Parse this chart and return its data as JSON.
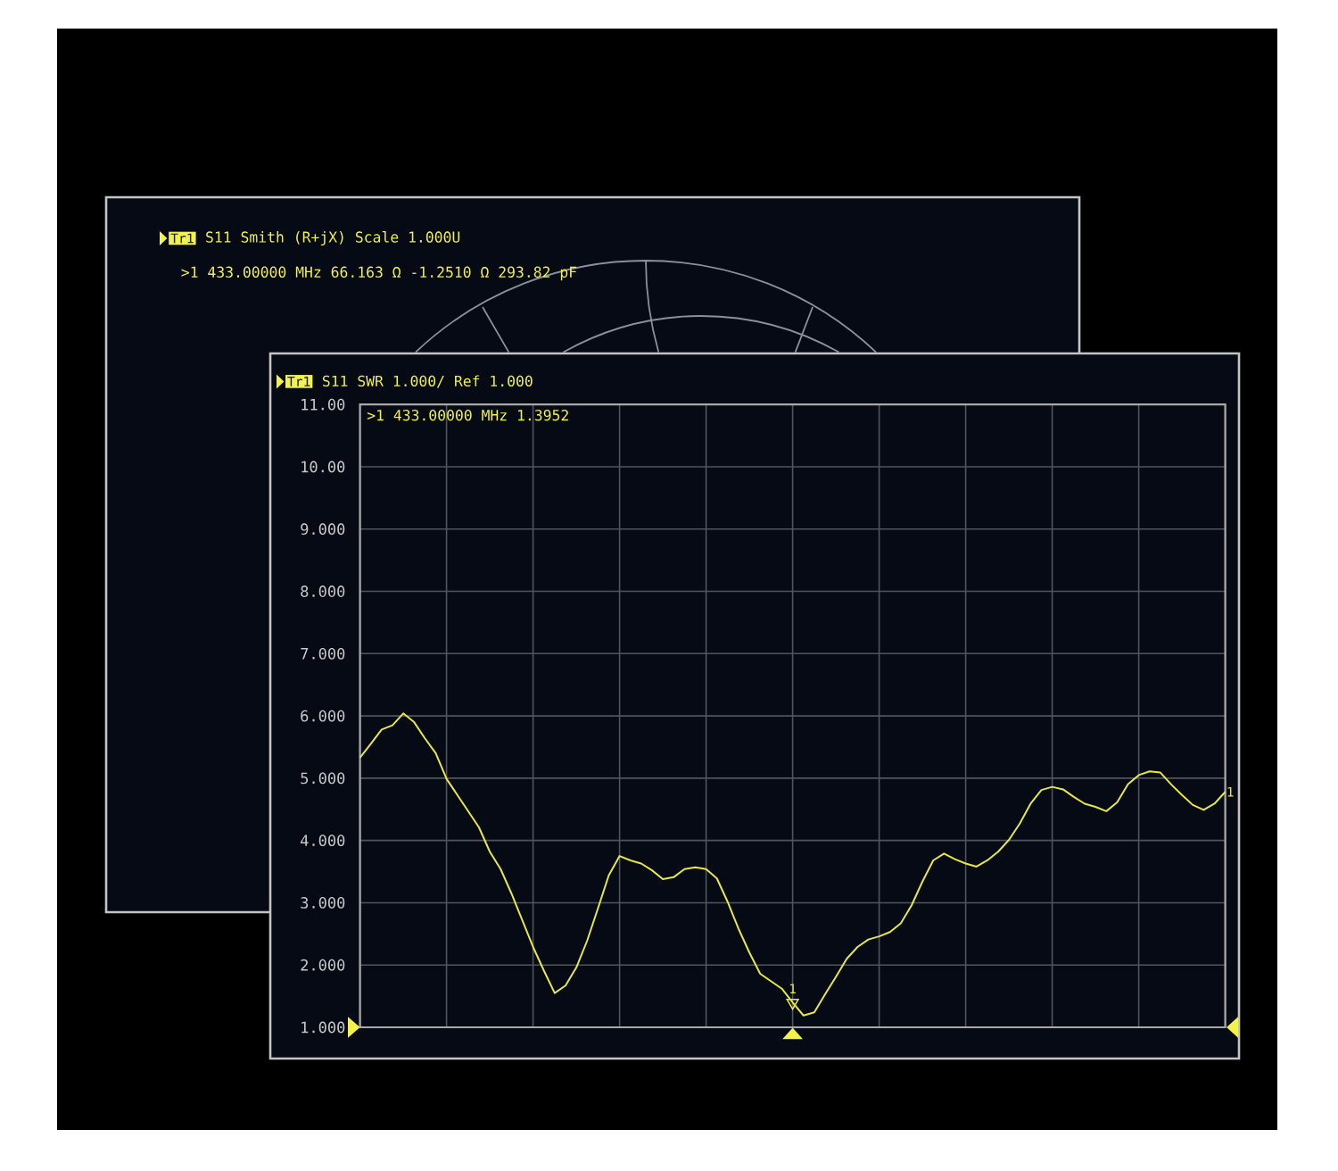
{
  "chart_data": [
    {
      "type": "other",
      "title": "S11 Smith (R+jX) Scale 1.000U",
      "annotations": [
        "Tr1",
        ">1 433.00000 MHz 66.163 Ω -1.2510 Ω 293.82 pF"
      ]
    },
    {
      "type": "line",
      "title": "S11 SWR 1.000/ Ref 1.000",
      "annotations": [
        "Tr1",
        ">1 433.00000 MHz 1.3952"
      ],
      "categories": [
        null,
        null,
        null,
        null,
        null,
        null,
        null,
        null,
        null,
        null,
        null,
        null,
        null,
        null,
        null,
        null,
        null,
        null,
        null,
        null,
        null,
        null,
        null,
        null,
        null,
        null,
        null,
        null,
        null,
        null,
        null,
        null,
        null,
        null,
        null,
        null,
        null,
        null,
        null,
        null,
        null,
        null,
        null,
        null,
        null,
        null,
        null,
        null,
        null,
        null,
        null,
        null,
        null,
        null,
        null,
        null,
        null,
        null,
        null,
        null,
        null,
        null,
        null,
        null,
        null,
        null,
        null,
        null,
        null,
        null,
        null,
        null,
        null,
        null,
        null,
        null,
        null,
        null,
        null,
        null,
        null
      ],
      "ylim": [
        1,
        11
      ],
      "yticks": [
        {
          "value": 1,
          "label": "1.000"
        },
        {
          "value": 2,
          "label": "2.000"
        },
        {
          "value": 3,
          "label": "3.000"
        },
        {
          "value": 4,
          "label": "4.000"
        },
        {
          "value": 5,
          "label": "5.000"
        },
        {
          "value": 6,
          "label": "6.000"
        },
        {
          "value": 7,
          "label": "7.000"
        },
        {
          "value": 8,
          "label": "8.000"
        },
        {
          "value": 9,
          "label": "9.000"
        },
        {
          "value": 10,
          "label": "10.00"
        },
        {
          "value": 11,
          "label": "11.00"
        }
      ],
      "grid": true,
      "series": [
        {
          "name": "1",
          "color": "#e6e645",
          "values": [
            5.33,
            5.55,
            5.78,
            5.85,
            6.04,
            5.9,
            5.64,
            5.4,
            4.99,
            4.73,
            4.47,
            4.21,
            3.82,
            3.54,
            3.15,
            2.72,
            2.29,
            1.91,
            1.55,
            1.67,
            1.96,
            2.39,
            2.91,
            3.44,
            3.75,
            3.68,
            3.63,
            3.52,
            3.38,
            3.41,
            3.54,
            3.57,
            3.54,
            3.39,
            3.01,
            2.58,
            2.2,
            1.86,
            1.74,
            1.62,
            1.4,
            1.19,
            1.24,
            1.53,
            1.81,
            2.1,
            2.29,
            2.41,
            2.46,
            2.53,
            2.67,
            2.96,
            3.34,
            3.68,
            3.79,
            3.7,
            3.63,
            3.58,
            3.68,
            3.82,
            4.01,
            4.27,
            4.59,
            4.81,
            4.86,
            4.82,
            4.7,
            4.59,
            4.54,
            4.47,
            4.61,
            4.9,
            5.05,
            5.11,
            5.09,
            4.9,
            4.73,
            4.57,
            4.49,
            4.59,
            4.78
          ]
        },
        {
          "type": "scatter",
          "name": "1",
          "color": "#e6e645",
          "marker": "triangle",
          "values": [
            null,
            null,
            null,
            null,
            null,
            null,
            null,
            null,
            null,
            null,
            null,
            null,
            null,
            null,
            null,
            null,
            null,
            null,
            null,
            null,
            null,
            null,
            null,
            null,
            null,
            null,
            null,
            null,
            null,
            null,
            null,
            null,
            null,
            null,
            null,
            null,
            null,
            null,
            null,
            null,
            1.3952,
            null,
            null,
            null,
            null,
            null,
            null,
            null,
            null,
            null,
            null,
            null,
            null,
            null,
            null,
            null,
            null,
            null,
            null,
            null,
            null,
            null,
            null,
            null,
            null,
            null,
            null,
            null,
            null,
            null,
            null,
            null,
            null,
            null,
            null,
            null,
            null,
            null,
            null,
            null,
            null
          ]
        }
      ]
    }
  ]
}
